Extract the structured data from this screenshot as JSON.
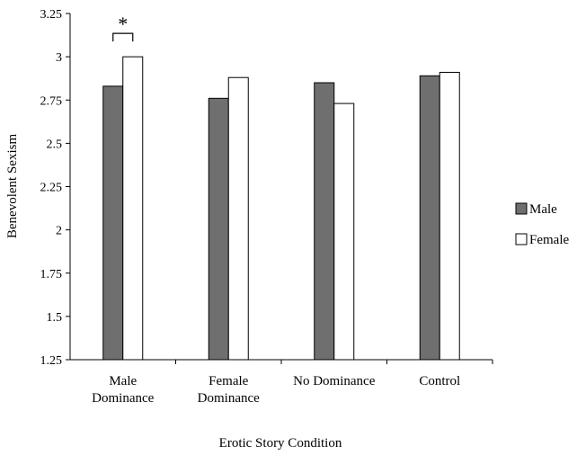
{
  "chart_data": {
    "type": "bar",
    "xlabel": "Erotic Story Condition",
    "ylabel": "Benevolent Sexism",
    "ylim": [
      1.25,
      3.25
    ],
    "yticks": [
      "1.25",
      "1.5",
      "1.75",
      "2",
      "2.25",
      "2.5",
      "2.75",
      "3",
      "3.25"
    ],
    "categories": [
      [
        "Male",
        "Dominance"
      ],
      [
        "Female",
        "Dominance"
      ],
      [
        "No Dominance"
      ],
      [
        "Control"
      ]
    ],
    "series": [
      {
        "name": "Male",
        "color": "#6f6f6f",
        "values": [
          2.83,
          2.76,
          2.85,
          2.89
        ]
      },
      {
        "name": "Female",
        "color": "#ffffff",
        "values": [
          3.0,
          2.88,
          2.73,
          2.91
        ]
      }
    ],
    "legend_position": "right",
    "grid": false,
    "annotations": [
      {
        "text": "*",
        "category_index": 0,
        "type": "significance-bracket"
      }
    ]
  }
}
